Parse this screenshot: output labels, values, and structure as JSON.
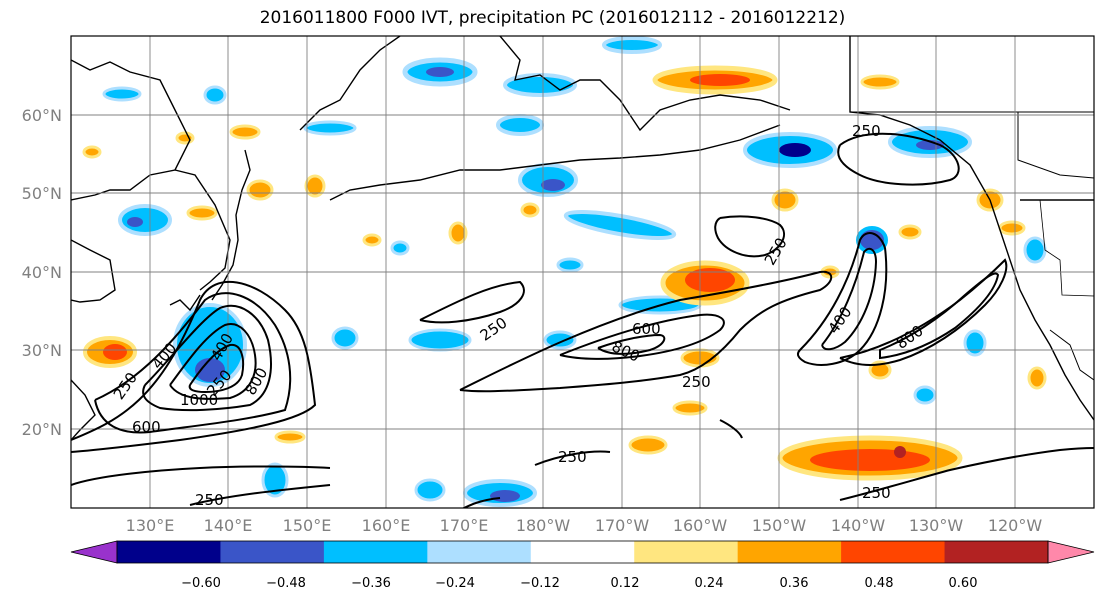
{
  "title": "2016011800 F000 IVT, precipitation PC (2016012112 - 2016012212)",
  "lat_labels": [
    "60°N",
    "50°N",
    "40°N",
    "30°N",
    "20°N"
  ],
  "lon_labels": [
    "130°E",
    "140°E",
    "150°E",
    "160°E",
    "170°E",
    "180°W",
    "170°W",
    "160°W",
    "150°W",
    "140°W",
    "130°W",
    "120°W"
  ],
  "contour_labels": [
    "250",
    "250",
    "250",
    "250",
    "250",
    "250",
    "250",
    "250",
    "250",
    "400",
    "400",
    "400",
    "600",
    "600",
    "800",
    "800",
    "800",
    "1000"
  ],
  "colorbar": {
    "tick_labels": [
      "−0.60",
      "−0.48",
      "−0.36",
      "−0.24",
      "−0.12",
      "0.12",
      "0.24",
      "0.36",
      "0.48",
      "0.60"
    ],
    "colors": [
      "#9932CC",
      "#00008B",
      "#3A55C8",
      "#00BFFF",
      "#ADDFFF",
      "#FFFFFF",
      "#FFE680",
      "#FFA500",
      "#FF4500",
      "#B22222",
      "#FF88AA"
    ]
  },
  "colors": {
    "contour": "#000000",
    "grid": "#808080",
    "coast": "#000000"
  }
}
